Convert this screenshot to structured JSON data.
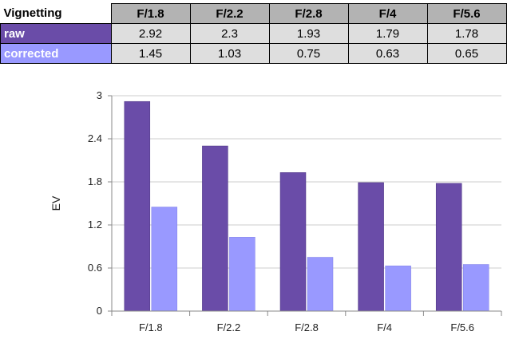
{
  "table": {
    "corner_label": "Vignetting",
    "columns": [
      "F/1.8",
      "F/2.2",
      "F/2.8",
      "F/4",
      "F/5.6"
    ],
    "rows": [
      {
        "label": "raw",
        "values": [
          "2.92",
          "2.3",
          "1.93",
          "1.79",
          "1.78"
        ]
      },
      {
        "label": "corrected",
        "values": [
          "1.45",
          "1.03",
          "0.75",
          "0.63",
          "0.65"
        ]
      }
    ]
  },
  "colors": {
    "raw": "#6a4ca8",
    "corrected": "#9999ff",
    "grid": "#cccccc",
    "axis": "#888888"
  },
  "chart_data": {
    "type": "bar",
    "categories": [
      "F/1.8",
      "F/2.2",
      "F/2.8",
      "F/4",
      "F/5.6"
    ],
    "series": [
      {
        "values": [
          2.92,
          2.3,
          1.93,
          1.79,
          1.78
        ]
      },
      {
        "values": [
          1.45,
          1.03,
          0.75,
          0.63,
          0.65
        ]
      }
    ],
    "title": "",
    "xlabel": "",
    "ylabel": "EV",
    "ylim": [
      0,
      3
    ],
    "yticks": [
      0,
      0.6,
      1.2,
      1.8,
      2.4,
      3
    ],
    "ytick_labels": [
      "0",
      "0.6",
      "1.2",
      "1.8",
      "2.4",
      "3"
    ],
    "grid": true,
    "legend": "none"
  }
}
